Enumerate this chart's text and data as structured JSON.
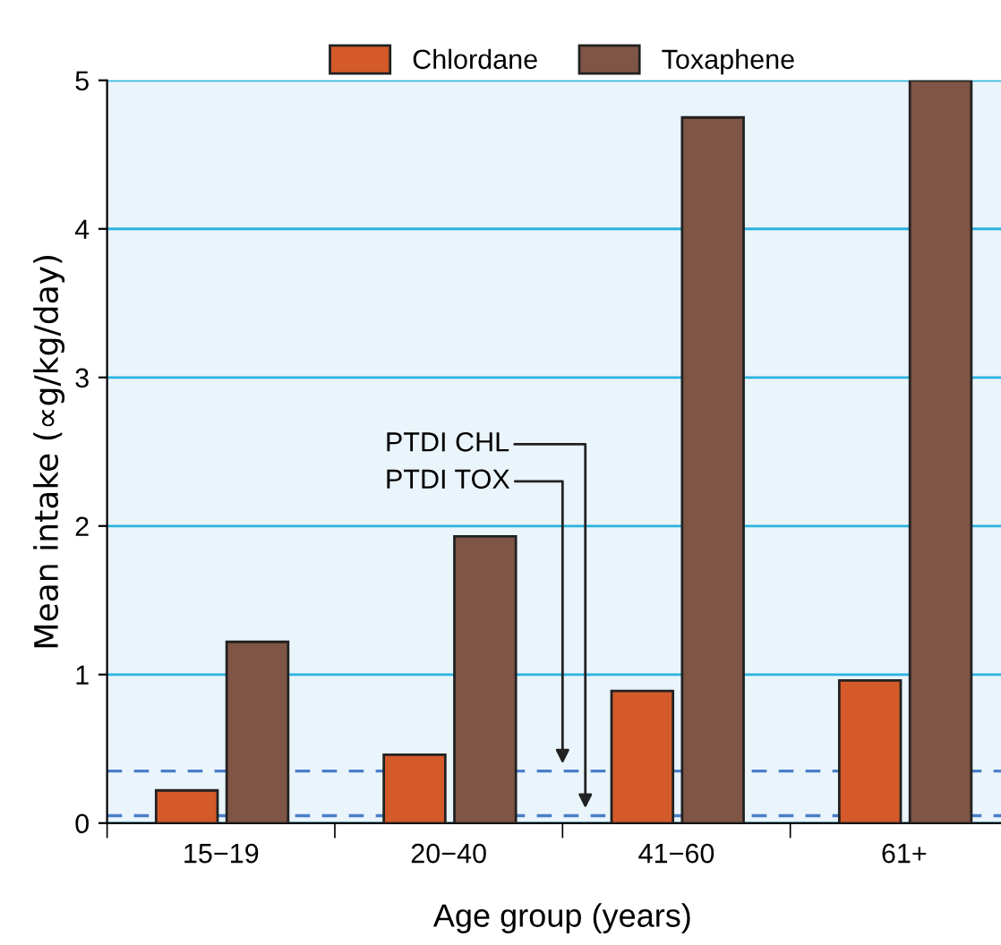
{
  "chart_data": {
    "type": "bar",
    "xlabel": "Age group (years)",
    "ylabel": "Mean intake (∝g/kg/day)",
    "categories": [
      "15−19",
      "20−40",
      "41−60",
      "61+"
    ],
    "series": [
      {
        "name": "Chlordane",
        "color": "#d45a2a",
        "values": [
          0.22,
          0.46,
          0.89,
          0.96
        ]
      },
      {
        "name": "Toxaphene",
        "color": "#7f5545",
        "values": [
          1.22,
          1.93,
          4.75,
          5.0
        ]
      }
    ],
    "ylim": [
      0,
      5
    ],
    "yticks": [
      0,
      1,
      2,
      3,
      4,
      5
    ],
    "grid": "y",
    "legend": "top",
    "ref_lines": [
      {
        "axis": "y",
        "value": 0.05,
        "label": "PTDI CHL",
        "color": "#4a7fc8",
        "line_style": "dashed"
      },
      {
        "axis": "y",
        "value": 0.35,
        "label": "PTDI TOX",
        "color": "#4a7fc8",
        "line_style": "dashed"
      }
    ]
  }
}
